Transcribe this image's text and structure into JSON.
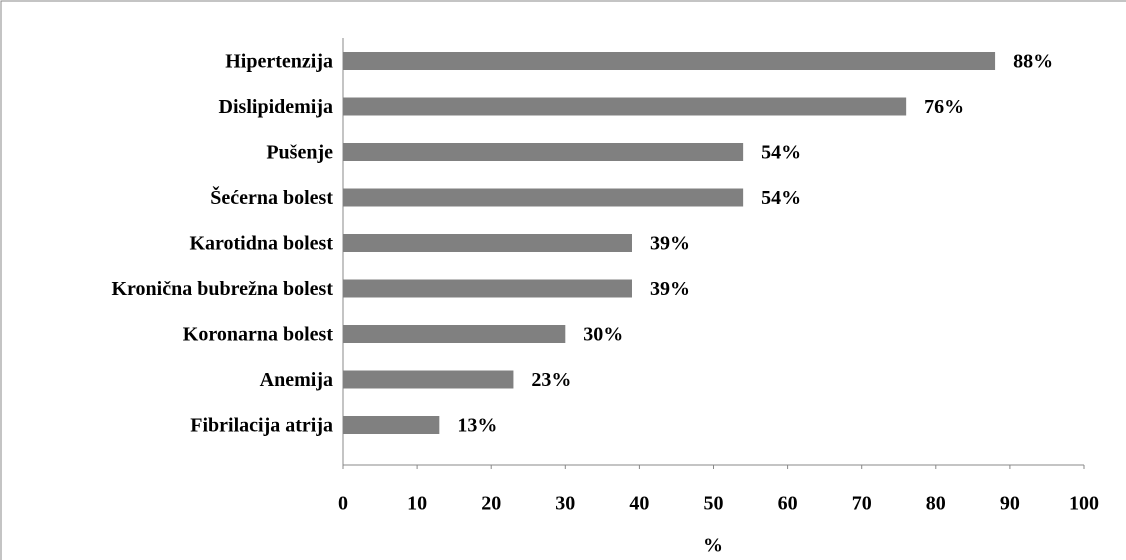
{
  "chart_data": {
    "type": "barh",
    "categories": [
      "Hipertenzija",
      "Dislipidemija",
      "Pušenje",
      "Šećerna bolest",
      "Karotidna bolest",
      "Kronična bubrežna bolest",
      "Koronarna bolest",
      "Anemija",
      "Fibrilacija atrija"
    ],
    "values": [
      88,
      76,
      54,
      54,
      39,
      39,
      30,
      23,
      13
    ],
    "value_labels": [
      "88%",
      "76%",
      "54%",
      "54%",
      "39%",
      "39%",
      "30%",
      "23%",
      "13%"
    ],
    "color": "#808080",
    "xlabel": "%",
    "xlim": [
      0,
      100
    ],
    "xticks": [
      0,
      10,
      20,
      30,
      40,
      50,
      60,
      70,
      80,
      90,
      100
    ]
  }
}
